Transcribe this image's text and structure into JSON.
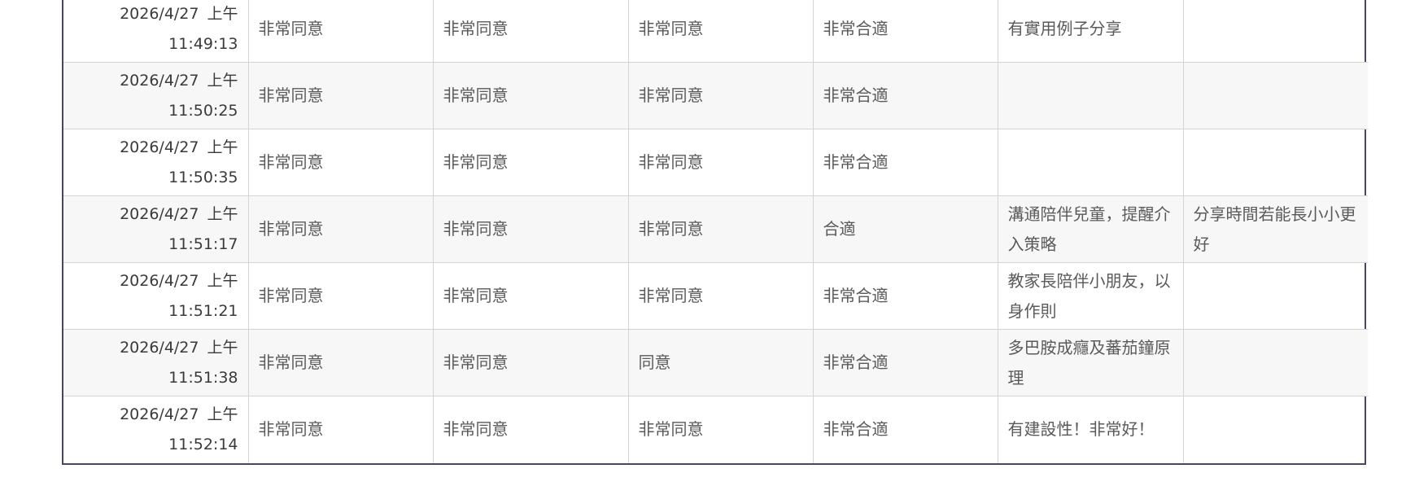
{
  "rows": [
    {
      "date": "2026/4/27",
      "ampm": "上午",
      "time": "11:49:13",
      "c1": "非常同意",
      "c2": "非常同意",
      "c3": "非常同意",
      "c4": "非常合適",
      "c5": "有實用例子分享",
      "c6": ""
    },
    {
      "date": "2026/4/27",
      "ampm": "上午",
      "time": "11:50:25",
      "c1": "非常同意",
      "c2": "非常同意",
      "c3": "非常同意",
      "c4": "非常合適",
      "c5": "",
      "c6": ""
    },
    {
      "date": "2026/4/27",
      "ampm": "上午",
      "time": "11:50:35",
      "c1": "非常同意",
      "c2": "非常同意",
      "c3": "非常同意",
      "c4": "非常合適",
      "c5": "",
      "c6": ""
    },
    {
      "date": "2026/4/27",
      "ampm": "上午",
      "time": "11:51:17",
      "c1": "非常同意",
      "c2": "非常同意",
      "c3": "非常同意",
      "c4": "合適",
      "c5": "溝通陪伴兒童，提醒介入策略",
      "c6": "分享時間若能長小小更好"
    },
    {
      "date": "2026/4/27",
      "ampm": "上午",
      "time": "11:51:21",
      "c1": "非常同意",
      "c2": "非常同意",
      "c3": "非常同意",
      "c4": "非常合適",
      "c5": "教家長陪伴小朋友，以身作則",
      "c6": ""
    },
    {
      "date": "2026/4/27",
      "ampm": "上午",
      "time": "11:51:38",
      "c1": "非常同意",
      "c2": "非常同意",
      "c3": "同意",
      "c4": "非常合適",
      "c5": "多巴胺成癮及蕃茄鐘原理",
      "c6": ""
    },
    {
      "date": "2026/4/27",
      "ampm": "上午",
      "time": "11:52:14",
      "c1": "非常同意",
      "c2": "非常同意",
      "c3": "非常同意",
      "c4": "非常合適",
      "c5": "有建設性！非常好！",
      "c6": ""
    }
  ],
  "colors": {
    "border_outer": "#4a4560",
    "grid": "#d4d4d4",
    "row_alt": "#f7f7f7"
  }
}
